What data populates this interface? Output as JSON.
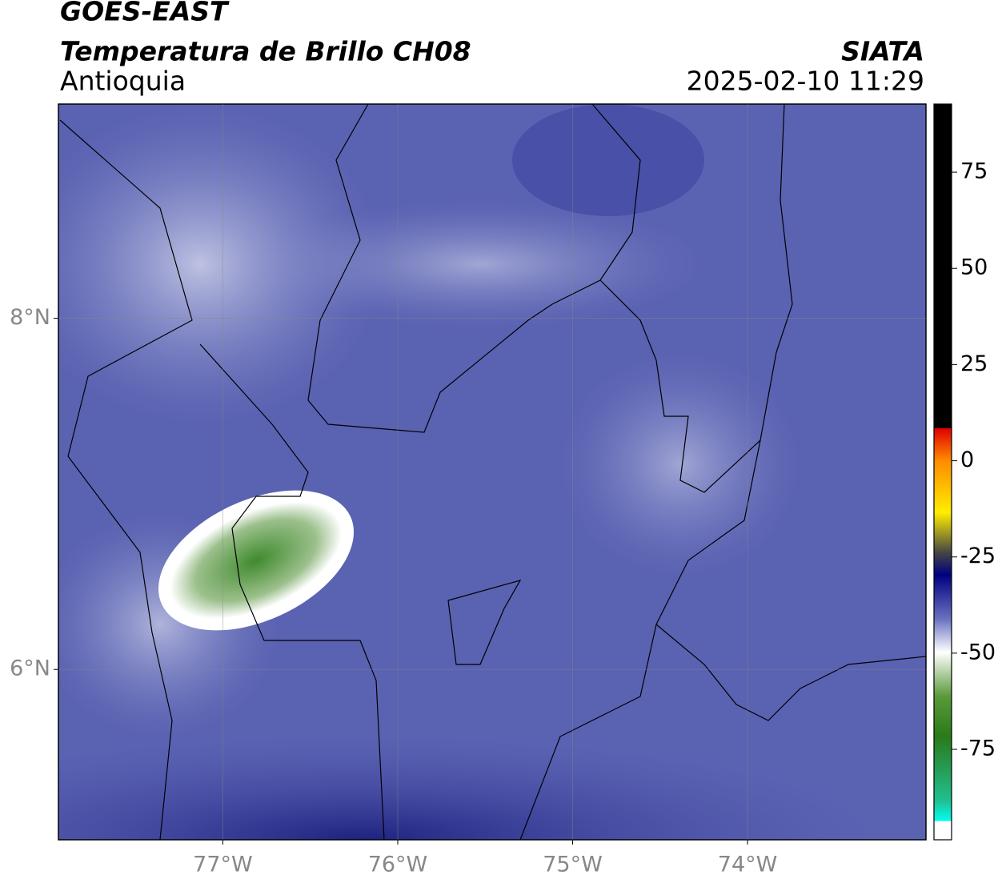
{
  "header": {
    "title": "GOES-EAST",
    "subtitle": "Temperatura de Brillo CH08",
    "region": "Antioquia",
    "org": "SIATA",
    "datetime": "2025-02-10 11:29"
  },
  "map": {
    "xlim": [
      -77.94,
      -72.98
    ],
    "ylim": [
      5.03,
      9.22
    ],
    "xticks": [
      {
        "value": -77,
        "label": "77°W"
      },
      {
        "value": -76,
        "label": "76°W"
      },
      {
        "value": -75,
        "label": "75°W"
      },
      {
        "value": -74,
        "label": "74°W"
      }
    ],
    "yticks": [
      {
        "value": 6,
        "label": "6°N"
      },
      {
        "value": 8,
        "label": "8°N"
      }
    ],
    "grid": true
  },
  "colorbar": {
    "lim": [
      -98.5,
      92.7
    ],
    "ticks": [
      75,
      50,
      25,
      0,
      -25,
      -50,
      -75
    ]
  }
}
